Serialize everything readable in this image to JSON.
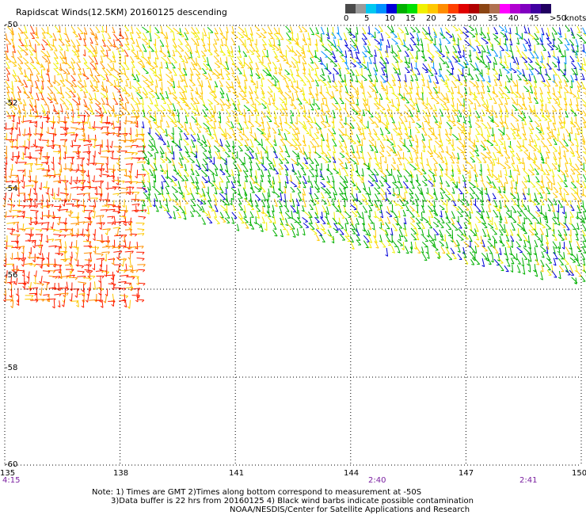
{
  "title": "Rapidscat Winds(12.5KM) 20160125 descending",
  "map": {
    "lon_ticks": [
      "135",
      "138",
      "141",
      "144",
      "147",
      "150"
    ],
    "lat_ticks": [
      "-50",
      "-52",
      "-54",
      "-56",
      "-58",
      "-60"
    ],
    "lon_range": [
      135,
      150
    ],
    "lat_range": [
      -60,
      -50
    ]
  },
  "time_labels": [
    {
      "text": "4:15",
      "lon": 135.2
    },
    {
      "text": "2:40",
      "lon": 144.7
    },
    {
      "text": "2:41",
      "lon": 148.6
    }
  ],
  "wind_scale": {
    "unit": "knots",
    "labels": [
      "0",
      "5",
      "10",
      "15",
      "20",
      "25",
      "30",
      "35",
      "40",
      "45",
      ">50"
    ],
    "colors": [
      "#4a4a4a",
      "#9a9a9a",
      "#00c8f0",
      "#0090ff",
      "#0000d8",
      "#00b000",
      "#00e000",
      "#f0f000",
      "#ffc800",
      "#ff8c00",
      "#ff4000",
      "#e00000",
      "#b00000",
      "#8b4513",
      "#b07050",
      "#ff00ff",
      "#b000d0",
      "#8000c0",
      "#4000a0",
      "#200060"
    ]
  },
  "notes": [
    "Note: 1) Times are GMT 2)Times along bottom correspond to measurement at -50S",
    "3)Data buffer is 22 hrs from 20160125 4) Black wind barbs indicate possible contamination",
    "NOAA/NESDIS/Center for Satellite Applications and Research"
  ]
}
